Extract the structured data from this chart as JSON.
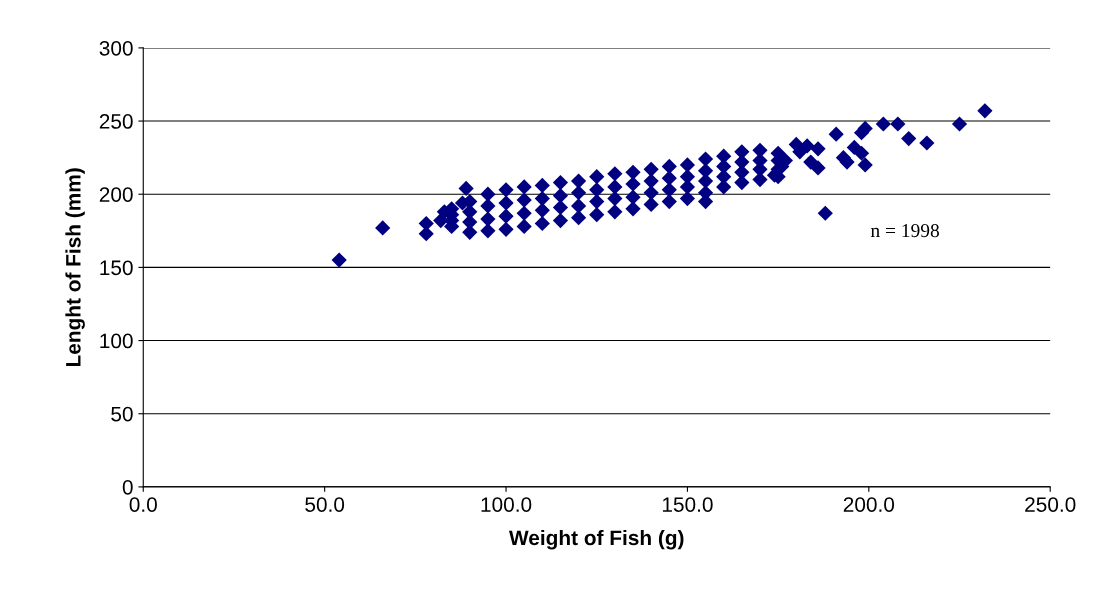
{
  "chart_data": {
    "type": "scatter",
    "xlabel": "Weight of Fish (g)",
    "ylabel": "Lenght of Fish (mm)",
    "annotations": [
      "n = 1998"
    ],
    "xlim": [
      0,
      250
    ],
    "xticks": [
      {
        "value": 0,
        "label": "0.0"
      },
      {
        "value": 50,
        "label": "50.0"
      },
      {
        "value": 100,
        "label": "100.0"
      },
      {
        "value": 150,
        "label": "150.0"
      },
      {
        "value": 200,
        "label": "200.0"
      },
      {
        "value": 250,
        "label": "250.0"
      }
    ],
    "ylim": [
      0,
      300
    ],
    "yticks": [
      0,
      50,
      100,
      150,
      200,
      250,
      300
    ],
    "grid": "y",
    "marker": "diamond",
    "series": [
      {
        "color": "#000080",
        "x": [
          54,
          66,
          78,
          78,
          82,
          83,
          88,
          89,
          188,
          191,
          193,
          194,
          196,
          198,
          199,
          198,
          199,
          204,
          208,
          211,
          216,
          225,
          232,
          186,
          186,
          184,
          181,
          180,
          183,
          174,
          176,
          177,
          155,
          85,
          85,
          85,
          85,
          90,
          90,
          90,
          90,
          95,
          95,
          95,
          95,
          100,
          100,
          100,
          100,
          105,
          105,
          105,
          105,
          110,
          110,
          110,
          110,
          115,
          115,
          115,
          115,
          120,
          120,
          120,
          120,
          125,
          125,
          125,
          125,
          130,
          130,
          130,
          130,
          135,
          135,
          135,
          135,
          140,
          140,
          140,
          140,
          145,
          145,
          145,
          145,
          150,
          150,
          150,
          150,
          155,
          155,
          155,
          155,
          160,
          160,
          160,
          160,
          165,
          165,
          165,
          165,
          170,
          170,
          170,
          170,
          175,
          175,
          175,
          175
        ],
        "values": [
          155,
          177,
          180,
          173,
          182,
          188,
          194,
          204,
          187,
          241,
          225,
          222,
          232,
          228,
          245,
          242,
          220,
          248,
          248,
          238,
          235,
          248,
          257,
          218,
          231,
          222,
          229,
          234,
          233,
          213,
          219,
          223,
          195,
          178,
          182,
          186,
          190,
          174,
          181,
          188,
          195,
          175,
          183,
          192,
          200,
          176,
          185,
          194,
          203,
          178,
          187,
          196,
          205,
          180,
          189,
          197,
          206,
          182,
          191,
          199,
          208,
          184,
          192,
          201,
          209,
          186,
          195,
          203,
          212,
          188,
          197,
          205,
          214,
          190,
          198,
          207,
          215,
          193,
          201,
          209,
          217,
          195,
          203,
          211,
          219,
          197,
          205,
          212,
          220,
          201,
          209,
          216,
          224,
          205,
          212,
          219,
          226,
          208,
          215,
          222,
          229,
          210,
          217,
          223,
          230,
          212,
          217,
          223,
          228
        ]
      }
    ]
  }
}
